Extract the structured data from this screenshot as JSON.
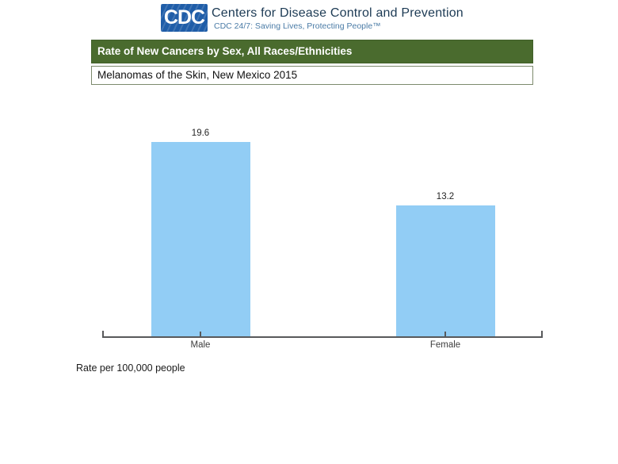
{
  "header": {
    "logo_text": "CDC",
    "org_name": "Centers for Disease Control and Prevention",
    "tagline": "CDC 24/7: Saving Lives, Protecting People™",
    "logo_bg": "#1f5da8",
    "org_color": "#1c3a54",
    "tagline_color": "#4a7ba6"
  },
  "title_bar": {
    "text": "Rate of New Cancers by Sex, All Races/Ethnicities",
    "bg": "#4a6b2e",
    "text_color": "#ffffff"
  },
  "subtitle_box": {
    "text": "Melanomas of the Skin, New Mexico 2015",
    "border_color": "#7d8a6d"
  },
  "chart_data": {
    "type": "bar",
    "categories": [
      "Male",
      "Female"
    ],
    "values": [
      19.6,
      13.2
    ],
    "data_labels": [
      "19.6",
      "13.2"
    ],
    "title": "Rate of New Cancers by Sex, All Races/Ethnicities",
    "subtitle": "Melanomas of the Skin, New Mexico 2015",
    "xlabel": "",
    "ylabel": "Rate per 100,000 people",
    "ylim": [
      0,
      20
    ],
    "grid": false,
    "legend": false,
    "bar_color": "#92cdf5",
    "axis_color": "#58595b",
    "footnote": "Rate per 100,000 people"
  }
}
